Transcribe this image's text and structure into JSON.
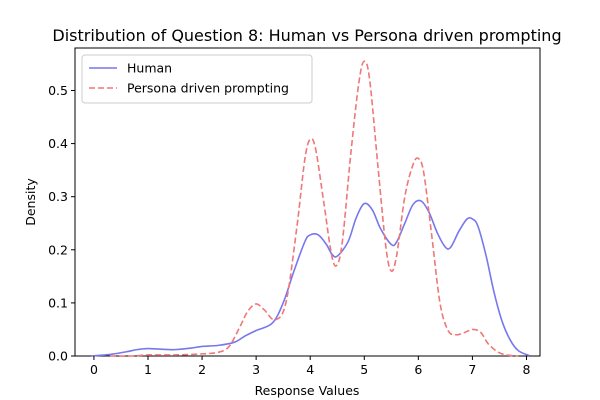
{
  "chart_data": {
    "type": "line",
    "title": "Distribution of Question 8: Human vs Persona driven prompting",
    "xlabel": "Response Values",
    "ylabel": "Density",
    "xlim": [
      -0.35,
      8.25
    ],
    "ylim": [
      0,
      0.58
    ],
    "xticks": [
      0,
      1,
      2,
      3,
      4,
      5,
      6,
      7,
      8
    ],
    "yticks": [
      0.0,
      0.1,
      0.2,
      0.3,
      0.4,
      0.5
    ],
    "ytick_labels": [
      "0.0",
      "0.1",
      "0.2",
      "0.3",
      "0.4",
      "0.5"
    ],
    "grid": false,
    "legend_position": "top-left",
    "series": [
      {
        "name": "Human",
        "color": "#7777ee",
        "style": "solid",
        "x": [
          -0.05,
          0.3,
          0.6,
          0.8,
          1.0,
          1.2,
          1.5,
          1.8,
          2.0,
          2.3,
          2.6,
          2.8,
          3.0,
          3.3,
          3.5,
          3.7,
          3.9,
          4.0,
          4.15,
          4.3,
          4.4,
          4.5,
          4.7,
          4.85,
          5.0,
          5.15,
          5.3,
          5.5,
          5.6,
          5.75,
          5.9,
          6.05,
          6.2,
          6.35,
          6.5,
          6.6,
          6.75,
          6.9,
          7.0,
          7.1,
          7.25,
          7.4,
          7.55,
          7.7,
          7.85,
          8.05
        ],
        "y": [
          0.0,
          0.003,
          0.008,
          0.012,
          0.014,
          0.013,
          0.012,
          0.015,
          0.018,
          0.02,
          0.026,
          0.038,
          0.048,
          0.062,
          0.1,
          0.16,
          0.215,
          0.228,
          0.228,
          0.21,
          0.192,
          0.188,
          0.215,
          0.26,
          0.287,
          0.275,
          0.24,
          0.21,
          0.215,
          0.25,
          0.285,
          0.292,
          0.27,
          0.232,
          0.205,
          0.205,
          0.235,
          0.258,
          0.258,
          0.245,
          0.19,
          0.12,
          0.065,
          0.03,
          0.01,
          0.001
        ]
      },
      {
        "name": "Persona driven prompting",
        "color": "#f07777",
        "style": "dashed",
        "x": [
          0.3,
          0.7,
          1.0,
          1.5,
          2.0,
          2.3,
          2.5,
          2.7,
          2.85,
          3.0,
          3.15,
          3.35,
          3.55,
          3.75,
          3.9,
          4.0,
          4.1,
          4.25,
          4.4,
          4.5,
          4.6,
          4.75,
          4.9,
          5.0,
          5.1,
          5.25,
          5.4,
          5.5,
          5.6,
          5.75,
          5.9,
          6.0,
          6.1,
          6.25,
          6.4,
          6.55,
          6.7,
          6.85,
          7.0,
          7.15,
          7.3,
          7.5,
          7.7,
          7.85
        ],
        "y": [
          0.0,
          0.0,
          0.002,
          0.002,
          0.004,
          0.007,
          0.018,
          0.055,
          0.085,
          0.098,
          0.087,
          0.068,
          0.1,
          0.24,
          0.37,
          0.408,
          0.39,
          0.29,
          0.188,
          0.172,
          0.22,
          0.38,
          0.515,
          0.555,
          0.52,
          0.36,
          0.205,
          0.16,
          0.19,
          0.3,
          0.36,
          0.372,
          0.345,
          0.225,
          0.1,
          0.048,
          0.04,
          0.044,
          0.05,
          0.045,
          0.022,
          0.006,
          0.001,
          0.0
        ]
      }
    ]
  }
}
